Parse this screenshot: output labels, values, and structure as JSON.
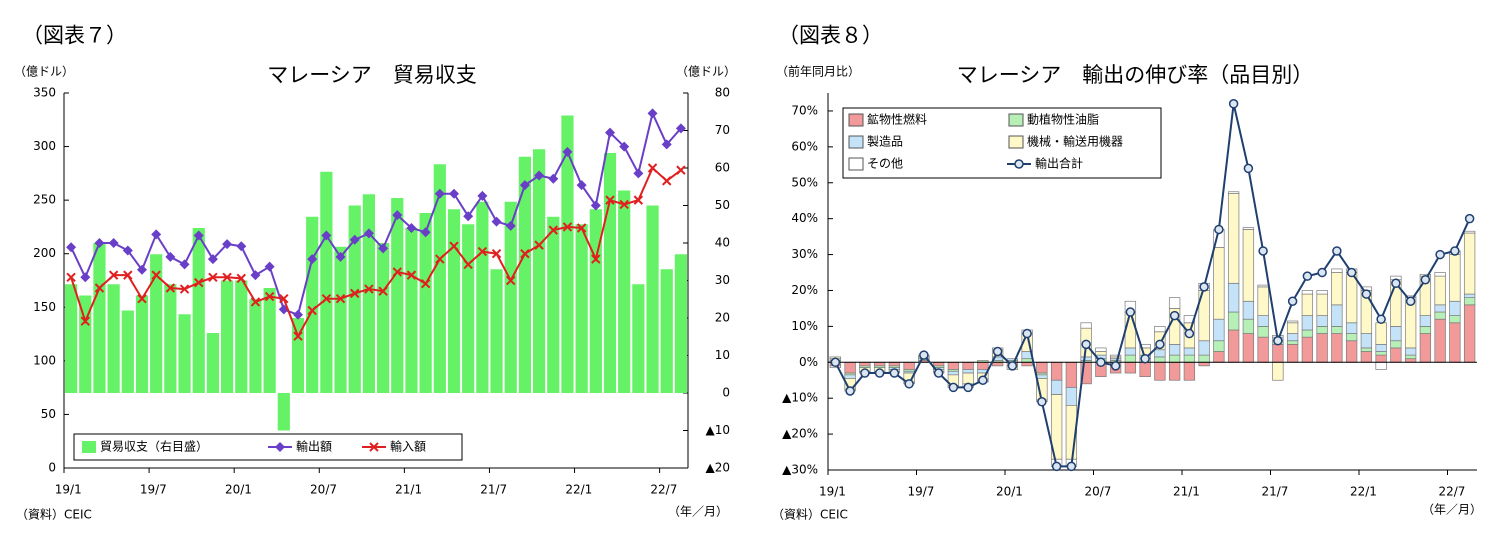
{
  "chart_data": [
    {
      "type": "combo",
      "figure_label": "（図表７）",
      "title": "マレーシア　貿易収支",
      "y_label": "（億ドル）",
      "y2_label": "（億ドル）",
      "x_label": "（年／月）",
      "source": "（資料）CEIC",
      "categories": [
        "19/1",
        null,
        null,
        null,
        null,
        null,
        "19/7",
        null,
        null,
        null,
        null,
        null,
        "20/1",
        null,
        null,
        null,
        null,
        null,
        "20/7",
        null,
        null,
        null,
        null,
        null,
        "21/1",
        null,
        null,
        null,
        null,
        null,
        "21/7",
        null,
        null,
        null,
        null,
        null,
        "22/1",
        null,
        null,
        null,
        null,
        null,
        "22/7",
        null
      ],
      "ylim": [
        0,
        350
      ],
      "yticks": [
        0,
        50,
        100,
        150,
        200,
        250,
        300,
        350
      ],
      "y2lim": [
        -20,
        80
      ],
      "y2ticks": [
        {
          "value": -20,
          "label": "▲20"
        },
        {
          "value": -10,
          "label": "▲10"
        },
        0,
        10,
        20,
        30,
        40,
        50,
        60,
        70,
        80
      ],
      "legend": "lower left",
      "grid": false,
      "series": [
        {
          "name": "貿易収支（右目盛）",
          "type": "bar",
          "axis": "y2",
          "color": "#66f266",
          "values": [
            29,
            26,
            40,
            29,
            22,
            26,
            37,
            29,
            21,
            44,
            16,
            30,
            30,
            25,
            28,
            -10,
            20,
            47,
            59,
            39,
            50,
            53,
            40,
            52,
            44,
            48,
            61,
            49,
            45,
            51,
            33,
            51,
            63,
            65,
            47,
            74,
            45,
            49,
            64,
            54,
            29,
            50,
            33,
            37
          ]
        },
        {
          "name": "輸出額",
          "type": "line",
          "marker": "diamond",
          "color": "#6a3fc8",
          "values": [
            206,
            178,
            210,
            210,
            203,
            185,
            218,
            197,
            190,
            217,
            195,
            209,
            207,
            180,
            188,
            148,
            143,
            195,
            217,
            197,
            213,
            219,
            205,
            236,
            224,
            220,
            256,
            256,
            235,
            254,
            230,
            226,
            264,
            273,
            270,
            295,
            264,
            245,
            313,
            300,
            275,
            331,
            302,
            317
          ]
        },
        {
          "name": "輸入額",
          "type": "line",
          "marker": "x",
          "color": "#e02020",
          "values": [
            178,
            137,
            168,
            180,
            180,
            158,
            180,
            168,
            167,
            173,
            178,
            178,
            177,
            155,
            160,
            158,
            123,
            147,
            158,
            158,
            163,
            167,
            165,
            183,
            180,
            172,
            195,
            207,
            190,
            202,
            200,
            175,
            200,
            208,
            222,
            225,
            224,
            195,
            250,
            246,
            250,
            280,
            268,
            278
          ]
        }
      ]
    },
    {
      "type": "stacked_bar",
      "figure_label": "（図表８）",
      "title": "マレーシア　輸出の伸び率（品目別）",
      "y_label": "（前年同月比）",
      "x_label": "（年／月）",
      "source": "（資料）CEIC",
      "categories": [
        "19/1",
        null,
        null,
        null,
        null,
        null,
        "19/7",
        null,
        null,
        null,
        null,
        null,
        "20/1",
        null,
        null,
        null,
        null,
        null,
        "20/7",
        null,
        null,
        null,
        null,
        null,
        "21/1",
        null,
        null,
        null,
        null,
        null,
        "21/7",
        null,
        null,
        null,
        null,
        null,
        "22/1",
        null,
        null,
        null,
        null,
        null,
        "22/7",
        null
      ],
      "ylim": [
        -30,
        75
      ],
      "yticks": [
        {
          "value": -30,
          "label": "▲30%"
        },
        {
          "value": -20,
          "label": "▲20%"
        },
        {
          "value": -10,
          "label": "▲10%"
        },
        {
          "value": 0,
          "label": "0%"
        },
        {
          "value": 10,
          "label": "10%"
        },
        {
          "value": 20,
          "label": "20%"
        },
        {
          "value": 30,
          "label": "30%"
        },
        {
          "value": 40,
          "label": "40%"
        },
        {
          "value": 50,
          "label": "50%"
        },
        {
          "value": 60,
          "label": "60%"
        },
        {
          "value": 70,
          "label": "70%"
        }
      ],
      "legend": "upper left",
      "grid": false,
      "series": [
        {
          "name": "鉱物性燃料",
          "type": "bar",
          "color": "#f29a9a",
          "values": [
            -1,
            -3,
            -1,
            -1,
            -1,
            -2,
            0.5,
            -1,
            -2,
            -2,
            -2,
            -1,
            -1,
            -1,
            -3,
            -5,
            -7,
            -6,
            -4,
            -3,
            -3,
            -4,
            -5,
            -5,
            -5,
            -1,
            3,
            9,
            8,
            7,
            5,
            5,
            7,
            8,
            8,
            6,
            3,
            2,
            4,
            1,
            8,
            12,
            11,
            16
          ]
        },
        {
          "name": "動植物性油脂",
          "type": "bar",
          "color": "#b6f0b6",
          "values": [
            0.5,
            -0.5,
            -0.5,
            -0.5,
            -0.5,
            -0.5,
            0.5,
            -0.5,
            -0.5,
            0,
            0.5,
            0.5,
            0.5,
            1,
            -0.5,
            0,
            0,
            0.5,
            1,
            0.5,
            2,
            1,
            1.5,
            2,
            2,
            2,
            3,
            5,
            4,
            3,
            1,
            1,
            2,
            2,
            2,
            2,
            1,
            1,
            2,
            1,
            2,
            2,
            2,
            2
          ]
        },
        {
          "name": "製造品",
          "type": "bar",
          "color": "#c4e2f8",
          "values": [
            0.5,
            -1,
            0,
            0,
            -0.5,
            -0.5,
            0.5,
            -0.5,
            -1,
            -1,
            -1,
            1,
            0.5,
            2,
            -1,
            -4,
            -5,
            1,
            1,
            0.5,
            2,
            1,
            2,
            3,
            2,
            4,
            6,
            8,
            5,
            3,
            1,
            2,
            4,
            3,
            6,
            3,
            4,
            2,
            4,
            2,
            3,
            2,
            4,
            1
          ]
        },
        {
          "name": "機械・輸送用機器",
          "type": "bar",
          "color": "#fff8c8",
          "values": [
            0.5,
            -3,
            -1,
            -1,
            -0.5,
            -2.5,
            0.5,
            -0.5,
            -3,
            -3,
            -2,
            2,
            -1,
            5,
            -6,
            -18,
            -15,
            8,
            1,
            0.5,
            10,
            2,
            5,
            10,
            7,
            14,
            20,
            25,
            20,
            8,
            -5,
            3,
            6,
            6,
            9,
            14,
            12,
            6,
            13,
            14,
            11,
            8,
            13,
            17
          ]
        },
        {
          "name": "その他",
          "type": "bar",
          "color": "#ffffff",
          "values": [
            -0.5,
            -0.5,
            -0.5,
            -0.5,
            -0.5,
            -0.5,
            0,
            -0.5,
            -0.5,
            -1,
            -0.5,
            0.5,
            0,
            1,
            -0.5,
            -2,
            -2,
            1.5,
            1,
            0.5,
            3,
            1,
            1.5,
            3,
            2,
            2,
            5,
            0.5,
            0.5,
            0.5,
            0.5,
            0.5,
            1,
            1,
            1,
            1,
            1,
            -2,
            1,
            0.5,
            0.5,
            1,
            1,
            0.5
          ]
        },
        {
          "name": "輸出合計",
          "type": "line",
          "marker": "circle",
          "color": "#1f3f6f",
          "values": [
            0,
            -8,
            -3,
            -3,
            -3,
            -6,
            2,
            -3,
            -7,
            -7,
            -5,
            3,
            -1,
            8,
            -11,
            -29,
            -29,
            5,
            0,
            -1,
            14,
            1,
            5,
            13,
            8,
            21,
            37,
            72,
            54,
            31,
            6,
            17,
            24,
            25,
            31,
            25,
            19,
            12,
            22,
            17,
            23,
            30,
            31,
            40
          ]
        }
      ]
    }
  ]
}
